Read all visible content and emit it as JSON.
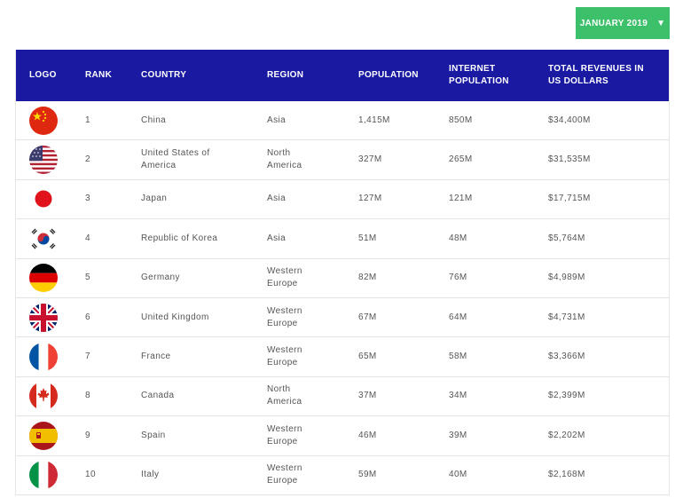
{
  "date_selector": {
    "label": "JANUARY 2019",
    "caret": "▼"
  },
  "table": {
    "headers": {
      "logo": "LOGO",
      "rank": "RANK",
      "country": "COUNTRY",
      "region": "REGION",
      "population": "POPULATION",
      "internet_population_line1": "INTERNET",
      "internet_population_line2": "POPULATION",
      "revenue_line1": "TOTAL REVENUES IN",
      "revenue_line2": "US DOLLARS"
    },
    "rows": [
      {
        "flag": "china-flag-icon",
        "rank": "1",
        "country_1": "China",
        "country_2": "",
        "region_1": "Asia",
        "region_2": "",
        "population": "1,415M",
        "internet": "850M",
        "revenue": "$34,400M"
      },
      {
        "flag": "usa-flag-icon",
        "rank": "2",
        "country_1": "United States of",
        "country_2": "America",
        "region_1": "North",
        "region_2": "America",
        "population": "327M",
        "internet": "265M",
        "revenue": "$31,535M"
      },
      {
        "flag": "japan-flag-icon",
        "rank": "3",
        "country_1": "Japan",
        "country_2": "",
        "region_1": "Asia",
        "region_2": "",
        "population": "127M",
        "internet": "121M",
        "revenue": "$17,715M"
      },
      {
        "flag": "korea-flag-icon",
        "rank": "4",
        "country_1": "Republic of Korea",
        "country_2": "",
        "region_1": "Asia",
        "region_2": "",
        "population": "51M",
        "internet": "48M",
        "revenue": "$5,764M"
      },
      {
        "flag": "germany-flag-icon",
        "rank": "5",
        "country_1": "Germany",
        "country_2": "",
        "region_1": "Western",
        "region_2": "Europe",
        "population": "82M",
        "internet": "76M",
        "revenue": "$4,989M"
      },
      {
        "flag": "uk-flag-icon",
        "rank": "6",
        "country_1": "United Kingdom",
        "country_2": "",
        "region_1": "Western",
        "region_2": "Europe",
        "population": "67M",
        "internet": "64M",
        "revenue": "$4,731M"
      },
      {
        "flag": "france-flag-icon",
        "rank": "7",
        "country_1": "France",
        "country_2": "",
        "region_1": "Western",
        "region_2": "Europe",
        "population": "65M",
        "internet": "58M",
        "revenue": "$3,366M"
      },
      {
        "flag": "canada-flag-icon",
        "rank": "8",
        "country_1": "Canada",
        "country_2": "",
        "region_1": "North",
        "region_2": "America",
        "population": "37M",
        "internet": "34M",
        "revenue": "$2,399M"
      },
      {
        "flag": "spain-flag-icon",
        "rank": "9",
        "country_1": "Spain",
        "country_2": "",
        "region_1": "Western",
        "region_2": "Europe",
        "population": "46M",
        "internet": "39M",
        "revenue": "$2,202M"
      },
      {
        "flag": "italy-flag-icon",
        "rank": "10",
        "country_1": "Italy",
        "country_2": "",
        "region_1": "Western",
        "region_2": "Europe",
        "population": "59M",
        "internet": "40M",
        "revenue": "$2,168M"
      }
    ]
  },
  "colors": {
    "header_bg": "#1919a2",
    "button_bg": "#3cc06a",
    "text": "#555555"
  }
}
